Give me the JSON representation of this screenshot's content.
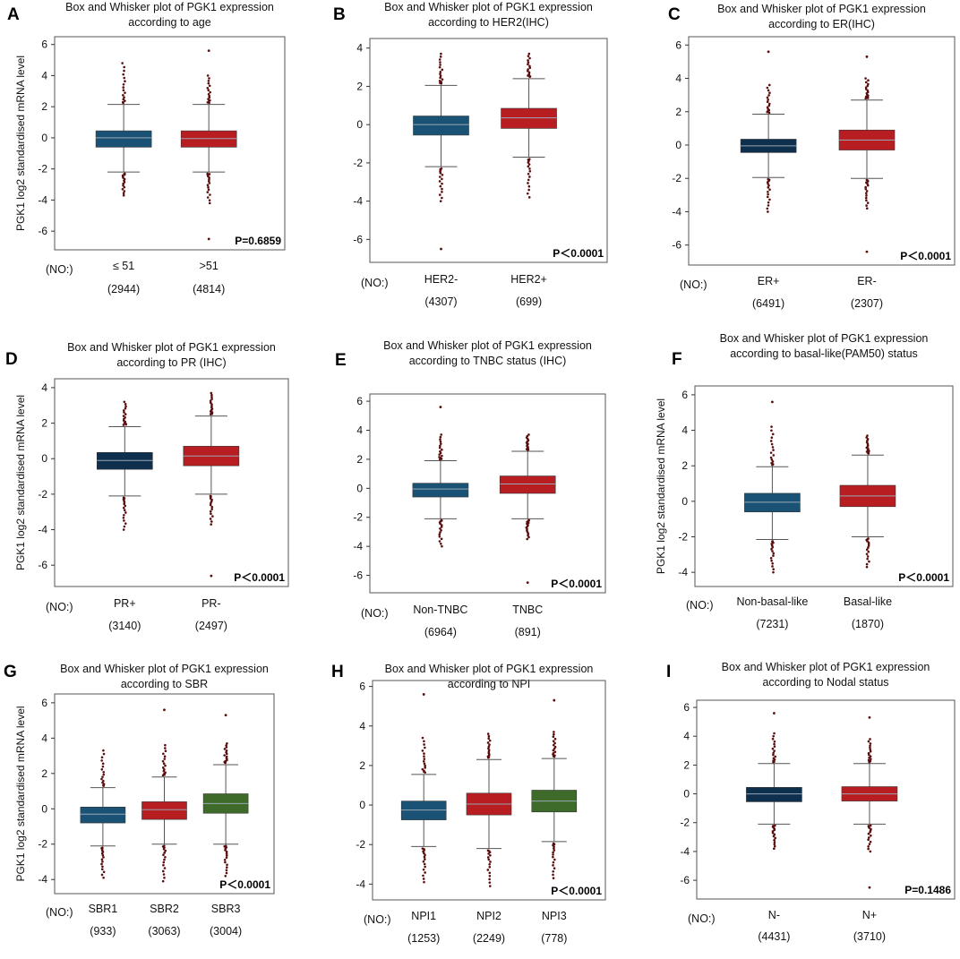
{
  "n_label": "(NO:)",
  "colors": {
    "blue": "#1a5276",
    "navy": "#0f2f4f",
    "red": "#b81d22",
    "green": "#3f6b2a",
    "outlier": "#5a0d0d",
    "median": "#9aa7b4"
  },
  "chart_data": [
    {
      "type": "box",
      "letter": "A",
      "title": [
        "Box and Whisker plot of PGK1 expression",
        "according to age"
      ],
      "ylabel": "PGK1 log2  standardised mRNA level",
      "ylim": [
        -7.2,
        6.5
      ],
      "yticks": [
        -6,
        -4,
        -2,
        0,
        2,
        4,
        6
      ],
      "pvalue": "P=0.6859",
      "pbold": true,
      "groups": [
        {
          "label": "≤ 51",
          "n": "(2944)",
          "color": "blue",
          "q1": -0.6,
          "median": 0.0,
          "q3": 0.45,
          "wlo": -2.2,
          "whi": 2.15,
          "out_lo": -3.7,
          "out_hi": 4.8,
          "extras": []
        },
        {
          "label": ">51",
          "n": "(4814)",
          "color": "red",
          "q1": -0.6,
          "median": -0.05,
          "q3": 0.45,
          "wlo": -2.2,
          "whi": 2.15,
          "out_lo": -4.2,
          "out_hi": 4.0,
          "extras": [
            5.6,
            -6.5
          ]
        }
      ]
    },
    {
      "type": "box",
      "letter": "B",
      "title": [
        "Box and Whisker plot of PGK1 expression",
        "according to HER2(IHC)"
      ],
      "ylabel": "",
      "ylim": [
        -7.2,
        4.5
      ],
      "yticks": [
        -6,
        -4,
        -2,
        0,
        2,
        4
      ],
      "pvalue": "P＜0.0001",
      "pbold": true,
      "groups": [
        {
          "label": "HER2-",
          "n": "(4307)",
          "color": "blue",
          "q1": -0.55,
          "median": 0.0,
          "q3": 0.45,
          "wlo": -2.2,
          "whi": 2.05,
          "out_lo": -4.0,
          "out_hi": 3.7,
          "extras": [
            -6.5
          ]
        },
        {
          "label": "HER2+",
          "n": "(699)",
          "color": "red",
          "q1": -0.2,
          "median": 0.35,
          "q3": 0.85,
          "wlo": -1.7,
          "whi": 2.4,
          "out_lo": -3.8,
          "out_hi": 3.7,
          "extras": []
        }
      ]
    },
    {
      "type": "box",
      "letter": "C",
      "title": [
        "Box and Whisker plot of PGK1 expression",
        "according to ER(IHC)"
      ],
      "ylabel": "",
      "ylim": [
        -7.2,
        6.5
      ],
      "yticks": [
        -6,
        -4,
        -2,
        0,
        2,
        4,
        6
      ],
      "pvalue": "P＜0.0001",
      "pbold": true,
      "groups": [
        {
          "label": "ER+",
          "n": "(6491)",
          "color": "navy",
          "q1": -0.45,
          "median": -0.05,
          "q3": 0.35,
          "wlo": -1.95,
          "whi": 1.85,
          "out_lo": -4.0,
          "out_hi": 3.6,
          "extras": [
            5.6
          ]
        },
        {
          "label": "ER-",
          "n": "(2307)",
          "color": "red",
          "q1": -0.3,
          "median": 0.3,
          "q3": 0.9,
          "wlo": -2.0,
          "whi": 2.7,
          "out_lo": -3.8,
          "out_hi": 4.0,
          "extras": [
            5.3,
            -6.4
          ]
        }
      ]
    },
    {
      "type": "box",
      "letter": "D",
      "title": [
        "Box and Whisker plot of PGK1 expression",
        "according to PR (IHC)"
      ],
      "ylabel": "PGK1 log2  standardised mRNA level",
      "ylim": [
        -7.2,
        4.5
      ],
      "yticks": [
        -6,
        -4,
        -2,
        0,
        2,
        4
      ],
      "pvalue": "P＜0.0001",
      "pbold": true,
      "groups": [
        {
          "label": "PR+",
          "n": "(3140)",
          "color": "navy",
          "q1": -0.6,
          "median": -0.1,
          "q3": 0.35,
          "wlo": -2.1,
          "whi": 1.8,
          "out_lo": -4.0,
          "out_hi": 3.2,
          "extras": []
        },
        {
          "label": "PR-",
          "n": "(2497)",
          "color": "red",
          "q1": -0.4,
          "median": 0.15,
          "q3": 0.7,
          "wlo": -2.0,
          "whi": 2.4,
          "out_lo": -3.7,
          "out_hi": 3.7,
          "extras": [
            -6.6
          ]
        }
      ]
    },
    {
      "type": "box",
      "letter": "E",
      "title": [
        "Box and Whisker plot of PGK1 expression",
        "according to TNBC status (IHC)"
      ],
      "ylabel": "",
      "ylim": [
        -7.2,
        6.5
      ],
      "yticks": [
        -6,
        -4,
        -2,
        0,
        2,
        4,
        6
      ],
      "pvalue": "P＜0.0001",
      "pbold": true,
      "groups": [
        {
          "label": "Non-TNBC",
          "n": "(6964)",
          "color": "blue",
          "q1": -0.6,
          "median": -0.05,
          "q3": 0.35,
          "wlo": -2.1,
          "whi": 1.9,
          "out_lo": -4.0,
          "out_hi": 3.7,
          "extras": [
            5.6
          ]
        },
        {
          "label": "TNBC",
          "n": "(891)",
          "color": "red",
          "q1": -0.35,
          "median": 0.3,
          "q3": 0.85,
          "wlo": -2.1,
          "whi": 2.55,
          "out_lo": -3.5,
          "out_hi": 3.7,
          "extras": [
            -6.5
          ]
        }
      ]
    },
    {
      "type": "box",
      "letter": "F",
      "title": [
        "Box and Whisker plot of PGK1 expression",
        "according to basal-like(PAM50) status"
      ],
      "ylabel": "PGK1 log2  standardised mRNA level",
      "ylim": [
        -4.8,
        6.5
      ],
      "yticks": [
        -4,
        -2,
        0,
        2,
        4,
        6
      ],
      "pvalue": "P＜0.0001",
      "pbold": true,
      "groups": [
        {
          "label": "Non-basal-like",
          "n": "(7231)",
          "color": "blue",
          "q1": -0.6,
          "median": -0.05,
          "q3": 0.45,
          "wlo": -2.15,
          "whi": 1.95,
          "out_lo": -4.0,
          "out_hi": 4.2,
          "extras": [
            5.6
          ]
        },
        {
          "label": "Basal-like",
          "n": "(1870)",
          "color": "red",
          "q1": -0.3,
          "median": 0.3,
          "q3": 0.9,
          "wlo": -2.0,
          "whi": 2.6,
          "out_lo": -3.7,
          "out_hi": 3.7,
          "extras": []
        }
      ]
    },
    {
      "type": "box",
      "letter": "G",
      "title": [
        "Box and Whisker plot of PGK1 expression",
        "according to SBR"
      ],
      "ylabel": "PGK1 log2  standardised mRNA level",
      "ylim": [
        -4.8,
        6.5
      ],
      "yticks": [
        -4,
        -2,
        0,
        2,
        4,
        6
      ],
      "pvalue": "P＜0.0001",
      "pbold": true,
      "groups": [
        {
          "label": "SBR1",
          "n": "(933)",
          "color": "blue",
          "q1": -0.8,
          "median": -0.3,
          "q3": 0.1,
          "wlo": -2.1,
          "whi": 1.2,
          "out_lo": -3.9,
          "out_hi": 3.3,
          "extras": []
        },
        {
          "label": "SBR2",
          "n": "(3063)",
          "color": "red",
          "q1": -0.6,
          "median": -0.05,
          "q3": 0.4,
          "wlo": -2.0,
          "whi": 1.8,
          "out_lo": -4.1,
          "out_hi": 3.6,
          "extras": [
            5.6
          ]
        },
        {
          "label": "SBR3",
          "n": "(3004)",
          "color": "green",
          "q1": -0.25,
          "median": 0.3,
          "q3": 0.85,
          "wlo": -2.0,
          "whi": 2.5,
          "out_lo": -3.8,
          "out_hi": 3.7,
          "extras": [
            5.3
          ]
        }
      ]
    },
    {
      "type": "box",
      "letter": "H",
      "title": [
        "Box and Whisker plot of PGK1 expression",
        "according to NPI"
      ],
      "ylabel": "",
      "ylim": [
        -4.8,
        6.3
      ],
      "yticks": [
        -4,
        -2,
        0,
        2,
        4,
        6
      ],
      "pvalue": "P＜0.0001",
      "pbold": true,
      "groups": [
        {
          "label": "NPI1",
          "n": "(1253)",
          "color": "blue",
          "q1": -0.75,
          "median": -0.25,
          "q3": 0.2,
          "wlo": -2.1,
          "whi": 1.55,
          "out_lo": -3.9,
          "out_hi": 3.4,
          "extras": [
            5.6
          ]
        },
        {
          "label": "NPI2",
          "n": "(2249)",
          "color": "red",
          "q1": -0.5,
          "median": 0.05,
          "q3": 0.6,
          "wlo": -2.2,
          "whi": 2.3,
          "out_lo": -4.1,
          "out_hi": 3.6,
          "extras": []
        },
        {
          "label": "NPI3",
          "n": "(778)",
          "color": "green",
          "q1": -0.35,
          "median": 0.2,
          "q3": 0.75,
          "wlo": -1.85,
          "whi": 2.35,
          "out_lo": -3.7,
          "out_hi": 3.7,
          "extras": [
            5.3
          ]
        }
      ]
    },
    {
      "type": "box",
      "letter": "I",
      "title": [
        "Box and Whisker plot of PGK1 expression",
        "according to Nodal status"
      ],
      "ylabel": "",
      "ylim": [
        -7.3,
        6.5
      ],
      "yticks": [
        -6,
        -4,
        -2,
        0,
        2,
        4,
        6
      ],
      "pvalue": "P=0.1486",
      "pbold": false,
      "groups": [
        {
          "label": "N-",
          "n": "(4431)",
          "color": "navy",
          "q1": -0.55,
          "median": 0.0,
          "q3": 0.45,
          "wlo": -2.1,
          "whi": 2.1,
          "out_lo": -3.8,
          "out_hi": 4.2,
          "extras": [
            5.6
          ]
        },
        {
          "label": "N+",
          "n": "(3710)",
          "color": "red",
          "q1": -0.5,
          "median": 0.0,
          "q3": 0.5,
          "wlo": -2.1,
          "whi": 2.1,
          "out_lo": -4.0,
          "out_hi": 3.8,
          "extras": [
            5.3,
            -6.5
          ]
        }
      ]
    }
  ]
}
